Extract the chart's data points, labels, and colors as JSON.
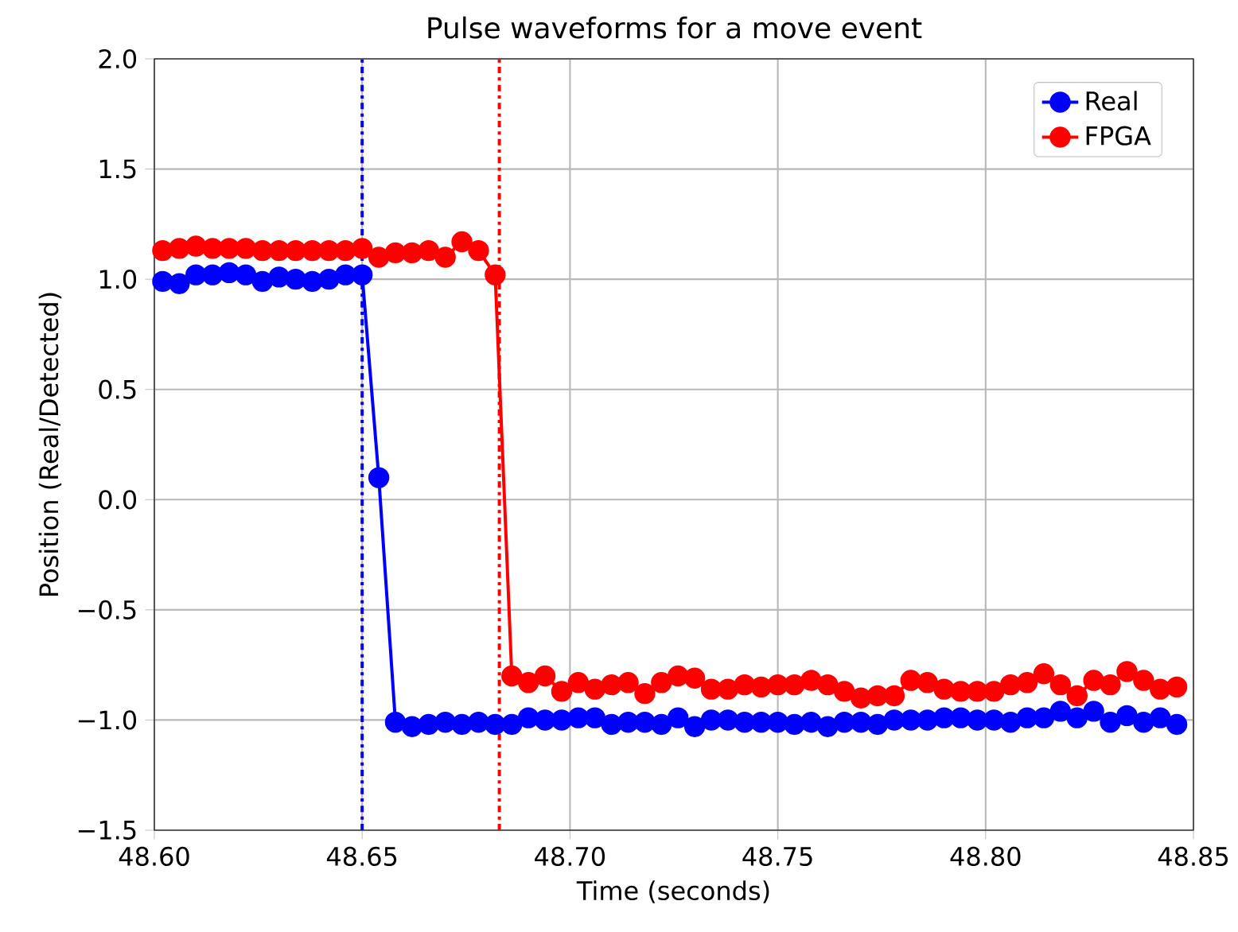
{
  "chart_data": {
    "type": "line",
    "title": "Pulse waveforms for a move event",
    "xlabel": "Time (seconds)",
    "ylabel": "Position (Real/Detected)",
    "x": [
      48.602,
      48.606,
      48.61,
      48.614,
      48.618,
      48.622,
      48.626,
      48.63,
      48.634,
      48.638,
      48.642,
      48.646,
      48.65,
      48.654,
      48.658,
      48.662,
      48.666,
      48.67,
      48.674,
      48.678,
      48.682,
      48.686,
      48.69,
      48.694,
      48.698,
      48.702,
      48.706,
      48.71,
      48.714,
      48.718,
      48.722,
      48.726,
      48.73,
      48.734,
      48.738,
      48.742,
      48.746,
      48.75,
      48.754,
      48.758,
      48.762,
      48.766,
      48.77,
      48.774,
      48.778,
      48.782,
      48.786,
      48.79,
      48.794,
      48.798,
      48.802,
      48.806,
      48.81,
      48.814,
      48.818,
      48.822,
      48.826,
      48.83,
      48.834,
      48.838,
      48.842,
      48.846
    ],
    "series": [
      {
        "name": "Real",
        "color": "#0000ff",
        "values": [
          0.99,
          0.98,
          1.02,
          1.02,
          1.03,
          1.02,
          0.99,
          1.01,
          1.0,
          0.99,
          1.0,
          1.02,
          1.02,
          0.1,
          -1.01,
          -1.03,
          -1.02,
          -1.01,
          -1.02,
          -1.01,
          -1.02,
          -1.02,
          -0.99,
          -1.0,
          -1.0,
          -0.99,
          -0.99,
          -1.02,
          -1.01,
          -1.01,
          -1.02,
          -0.99,
          -1.03,
          -1.0,
          -1.0,
          -1.01,
          -1.01,
          -1.01,
          -1.02,
          -1.01,
          -1.03,
          -1.01,
          -1.01,
          -1.02,
          -1.0,
          -1.0,
          -1.0,
          -0.99,
          -0.99,
          -1.0,
          -1.0,
          -1.01,
          -0.99,
          -0.99,
          -0.96,
          -0.99,
          -0.96,
          -1.01,
          -0.98,
          -1.01,
          -0.99,
          -1.02
        ]
      },
      {
        "name": "FPGA",
        "color": "#ff0000",
        "values": [
          1.13,
          1.14,
          1.15,
          1.14,
          1.14,
          1.14,
          1.13,
          1.13,
          1.13,
          1.13,
          1.13,
          1.13,
          1.14,
          1.1,
          1.12,
          1.12,
          1.13,
          1.1,
          1.17,
          1.13,
          1.02,
          -0.8,
          -0.83,
          -0.8,
          -0.87,
          -0.83,
          -0.86,
          -0.84,
          -0.83,
          -0.88,
          -0.83,
          -0.8,
          -0.81,
          -0.86,
          -0.86,
          -0.84,
          -0.85,
          -0.84,
          -0.84,
          -0.82,
          -0.84,
          -0.87,
          -0.9,
          -0.89,
          -0.89,
          -0.82,
          -0.83,
          -0.86,
          -0.87,
          -0.87,
          -0.87,
          -0.84,
          -0.83,
          -0.79,
          -0.84,
          -0.89,
          -0.82,
          -0.84,
          -0.78,
          -0.82,
          -0.86,
          -0.85
        ]
      }
    ],
    "xlim": [
      48.6,
      48.85
    ],
    "xticks": [
      {
        "value": 48.6,
        "label": "48.60"
      },
      {
        "value": 48.65,
        "label": "48.65"
      },
      {
        "value": 48.7,
        "label": "48.70"
      },
      {
        "value": 48.75,
        "label": "48.75"
      },
      {
        "value": 48.8,
        "label": "48.80"
      },
      {
        "value": 48.85,
        "label": "48.85"
      }
    ],
    "ylim": [
      -1.5,
      2.0
    ],
    "yticks": [
      {
        "value": -1.5,
        "label": "−1.5"
      },
      {
        "value": -1.0,
        "label": "−1.0"
      },
      {
        "value": -0.5,
        "label": "−0.5"
      },
      {
        "value": 0.0,
        "label": "0.0"
      },
      {
        "value": 0.5,
        "label": "0.5"
      },
      {
        "value": 1.0,
        "label": "1.0"
      },
      {
        "value": 1.5,
        "label": "1.5"
      },
      {
        "value": 2.0,
        "label": "2.0"
      }
    ],
    "ref_lines": [
      {
        "axis": "x",
        "value": 48.65,
        "color": "#0000ff",
        "line_style": "dashdot"
      },
      {
        "axis": "x",
        "value": 48.683,
        "color": "#ff0000",
        "line_style": "dashdot"
      }
    ],
    "grid": true,
    "legend": "top right",
    "marker": "circle",
    "line_style": "solid"
  }
}
